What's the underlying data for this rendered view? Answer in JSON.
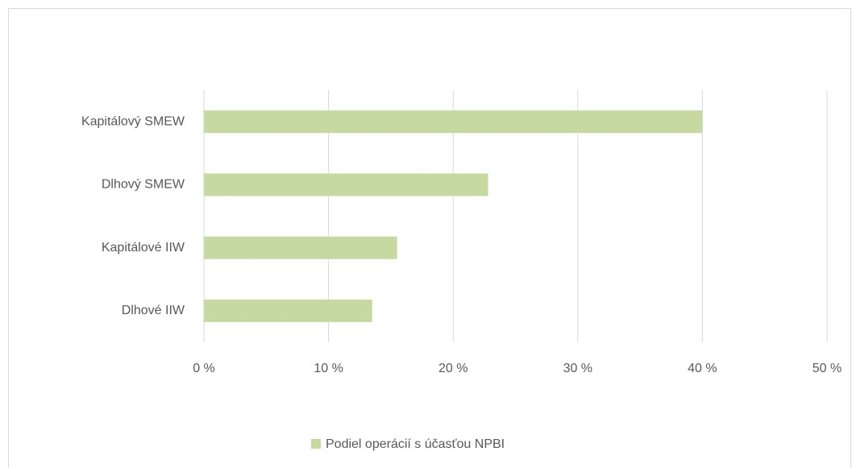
{
  "chart_data": {
    "type": "hbar",
    "categories": [
      "Kapitálový SMEW",
      "Dlhový SMEW",
      "Kapitálové IIW",
      "Dlhové IIW"
    ],
    "series": [
      {
        "name": "Podiel operácií s účasťou NPBI",
        "color": "#c5d9a0",
        "values": [
          40,
          22.8,
          15.5,
          13.5
        ]
      }
    ],
    "xlim": [
      0,
      50
    ],
    "xticks": [
      {
        "value": 0,
        "label": "0 %"
      },
      {
        "value": 10,
        "label": "10 %"
      },
      {
        "value": 20,
        "label": "20 %"
      },
      {
        "value": 30,
        "label": "30 %"
      },
      {
        "value": 40,
        "label": "40 %"
      },
      {
        "value": 50,
        "label": "50 %"
      }
    ],
    "grid": true,
    "legend": "bottom"
  }
}
